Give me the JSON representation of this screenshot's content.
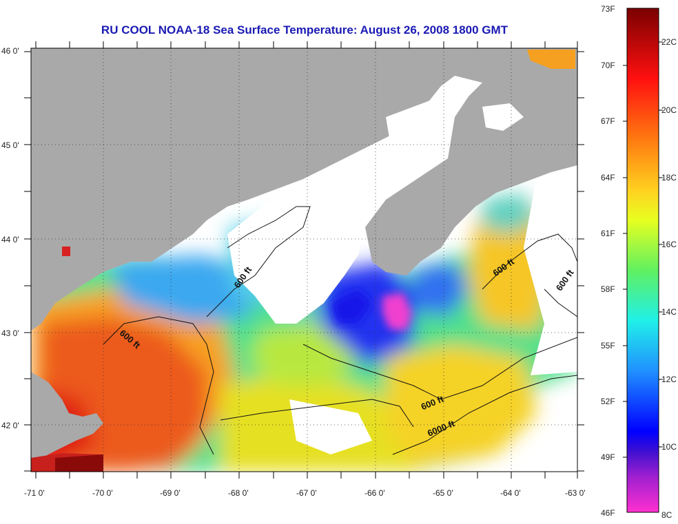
{
  "title": "RU COOL  NOAA-18  Sea Surface Temperature:  August 26, 2008 1800 GMT",
  "map": {
    "lat_labels": [
      "46 0'",
      "45 0'",
      "44 0'",
      "43 0'",
      "42 0'"
    ],
    "lon_labels": [
      "-71 0'",
      "-70 0'",
      "-69 0'",
      "-68 0'",
      "-67 0'",
      "-66 0'",
      "-65 0'",
      "-64 0'",
      "-63 0'"
    ],
    "contour_labels": [
      "600 ft",
      "600 ft",
      "600 ft",
      "600 ft",
      "600 ft",
      "6000 ft"
    ],
    "colors": {
      "land": "#a9a9a9",
      "no_data": "#ffffff",
      "warm": "#e8301c",
      "cold": "#1a1aff"
    }
  },
  "colorbar": {
    "fahrenheit_labels": [
      "73F",
      "70F",
      "67F",
      "64F",
      "61F",
      "58F",
      "55F",
      "52F",
      "49F",
      "46F"
    ],
    "celsius_labels": [
      "22C",
      "20C",
      "18C",
      "16C",
      "14C",
      "12C",
      "10C",
      "8C"
    ],
    "range_f": [
      46,
      73
    ],
    "range_c": [
      8,
      23
    ]
  }
}
